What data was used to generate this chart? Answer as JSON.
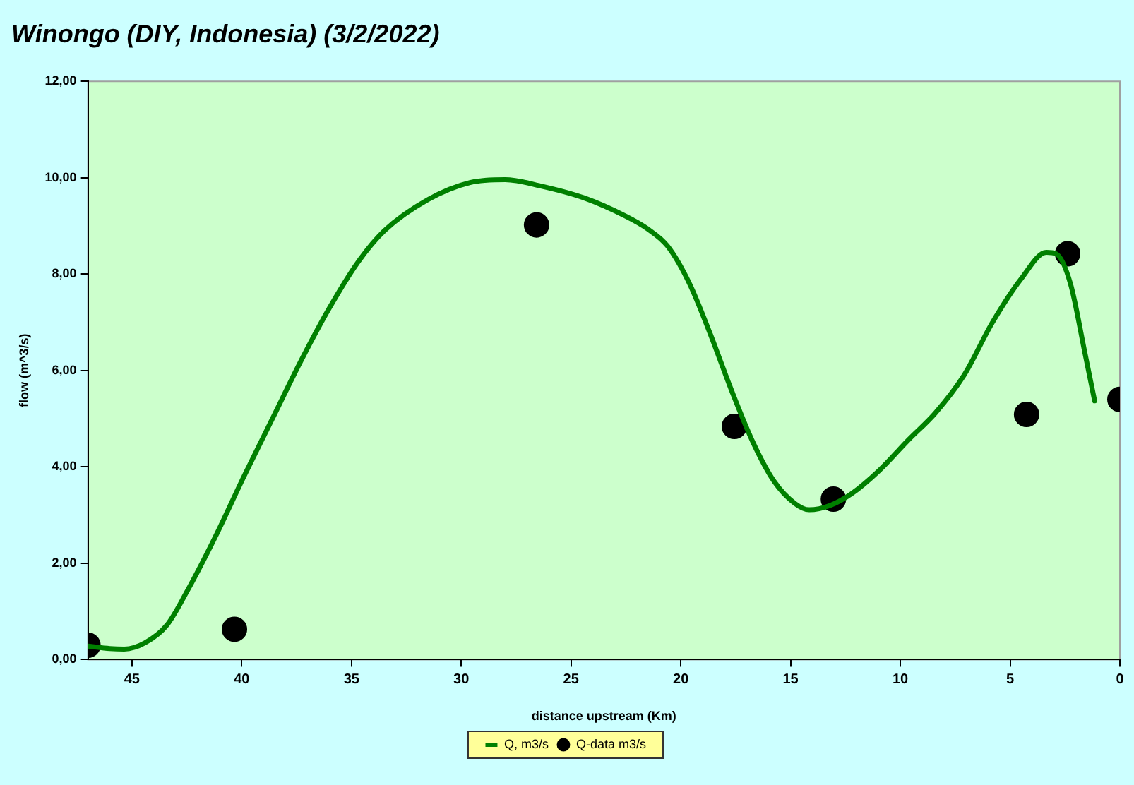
{
  "chart_data": {
    "type": "line",
    "title": "Winongo (DIY, Indonesia) (3/2/2022)",
    "xlabel": "distance upstream (Km)",
    "ylabel": "flow (m^3/s)",
    "xlim": [
      47,
      0
    ],
    "xticks": [
      45,
      40,
      35,
      30,
      25,
      20,
      15,
      10,
      5,
      0
    ],
    "ylim": [
      0,
      12
    ],
    "yticks": [
      {
        "value": 0,
        "label": "0,00"
      },
      {
        "value": 2,
        "label": "2,00"
      },
      {
        "value": 4,
        "label": "4,00"
      },
      {
        "value": 6,
        "label": "6,00"
      },
      {
        "value": 8,
        "label": "8,00"
      },
      {
        "value": 10,
        "label": "10,00"
      },
      {
        "value": 12,
        "label": "12,00"
      }
    ],
    "grid": false,
    "legend": "bottom",
    "series": [
      {
        "name": "Q, m3/s",
        "type": "line",
        "color": "#008000",
        "marker": "none",
        "line_style": "solid",
        "x": [
          47,
          46.0,
          45.35,
          44.4,
          43.4,
          42.45,
          41.2,
          39.9,
          38.6,
          37.3,
          36.0,
          34.7,
          33.5,
          31.5,
          29.6,
          28.0,
          26.4,
          24.4,
          22.5,
          21.55,
          20.6,
          19.6,
          18.65,
          17.7,
          16.7,
          15.75,
          14.8,
          14.15,
          13.2,
          12.2,
          10.95,
          9.65,
          8.4,
          7.1,
          5.8,
          4.5,
          3.35,
          2.9,
          2.25,
          1.6,
          1.15
        ],
        "values": [
          0.28,
          0.23,
          0.22,
          0.35,
          0.72,
          1.45,
          2.55,
          3.8,
          5.0,
          6.2,
          7.3,
          8.25,
          8.9,
          9.55,
          9.9,
          9.96,
          9.83,
          9.58,
          9.2,
          8.95,
          8.58,
          7.8,
          6.75,
          5.6,
          4.5,
          3.7,
          3.24,
          3.11,
          3.2,
          3.45,
          3.93,
          4.55,
          5.12,
          5.9,
          7.0,
          7.9,
          8.45,
          8.42,
          7.8,
          6.38,
          5.37
        ]
      },
      {
        "name": "Q-data m3/s",
        "type": "scatter",
        "color": "#000000",
        "marker": "circle",
        "x": [
          47,
          40.33,
          26.57,
          17.56,
          13.05,
          4.25,
          2.38,
          0
        ],
        "values": [
          0.3,
          0.63,
          9.02,
          4.84,
          3.33,
          5.09,
          8.42,
          5.4
        ]
      }
    ]
  }
}
